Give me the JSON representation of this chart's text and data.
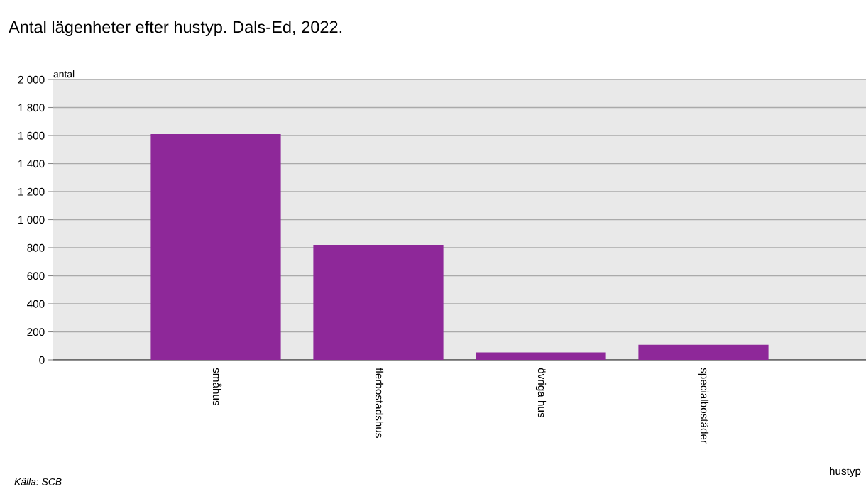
{
  "chart_data": {
    "type": "bar",
    "title": "Antal lägenheter efter hustyp. Dals-Ed, 2022.",
    "xlabel": "hustyp",
    "ylabel": "antal",
    "categories": [
      "småhus",
      "flerbostadshus",
      "övriga hus",
      "specialbostäder"
    ],
    "values": [
      1610,
      820,
      53,
      108
    ],
    "color": "#8e2899",
    "ylim": [
      0,
      2000
    ],
    "yticks": [
      0,
      200,
      400,
      600,
      800,
      {
        "value": 1000,
        "label": "1 000"
      },
      {
        "value": 1200,
        "label": "1 200"
      },
      {
        "value": 1400,
        "label": "1 400"
      },
      {
        "value": 1600,
        "label": "1 600"
      },
      {
        "value": 1800,
        "label": "1 800"
      },
      {
        "value": 2000,
        "label": "2 000"
      }
    ],
    "grid": "y",
    "legend": false,
    "annotations": [
      "Källa: SCB"
    ]
  }
}
